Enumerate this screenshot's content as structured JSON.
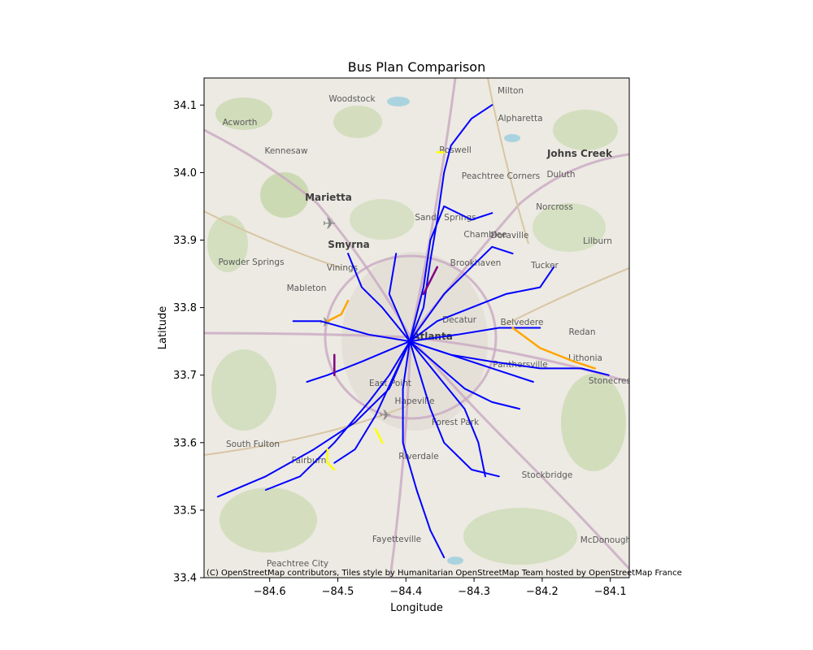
{
  "figure": {
    "title": "Bus Plan Comparison",
    "xlabel": "Longitude",
    "ylabel": "Latitude",
    "attribution": "(C) OpenStreetMap contributors, Tiles style by Humanitarian OpenStreetMap Team hosted by OpenStreetMap France"
  },
  "map": {
    "x_ticks": [
      "−84.6",
      "−84.5",
      "−84.4",
      "−84.3",
      "−84.2",
      "−84.1"
    ],
    "y_ticks": [
      "33.4",
      "33.5",
      "33.6",
      "33.7",
      "33.8",
      "33.9",
      "34.0",
      "34.1"
    ],
    "places": [
      "Woodstock",
      "Milton",
      "Alpharetta",
      "Acworth",
      "Kennesaw",
      "Roswell",
      "Johns Creek",
      "Duluth",
      "Peachtree Corners",
      "Marietta",
      "Norcross",
      "Sandy Springs",
      "Smyrna",
      "Lilburn",
      "Powder Springs",
      "Vinings",
      "Brookhaven",
      "Tucker",
      "Mableton",
      "Decatur",
      "Belvedere",
      "Redan",
      "Atlanta",
      "Stonecrest",
      "Forest Park",
      "South Fulton",
      "Fairburn",
      "Riverdale",
      "Stockbridge",
      "Fayetteville",
      "McDonough",
      "Peachtree City",
      "Chamblee",
      "Doraville",
      "Lithonia",
      "Panthersville",
      "East Point",
      "Hapeville"
    ],
    "colors": {
      "bus_route": "#0000ff",
      "proposed_a": "#ffa500",
      "proposed_b": "#ffff00",
      "removed": "#800080"
    }
  },
  "chart_data": {
    "type": "map",
    "title": "Bus Plan Comparison",
    "xlabel": "Longitude",
    "ylabel": "Latitude",
    "xlim": [
      -84.69,
      -84.07
    ],
    "ylim": [
      33.4,
      34.14
    ],
    "series": [
      {
        "color": "#0000ff",
        "routes": [
          [
            [
              -84.67,
              33.52
            ],
            [
              -84.6,
              33.55
            ],
            [
              -84.53,
              33.59
            ],
            [
              -84.47,
              33.63
            ],
            [
              -84.42,
              33.68
            ],
            [
              -84.39,
              33.75
            ]
          ],
          [
            [
              -84.39,
              33.75
            ],
            [
              -84.37,
              33.8
            ],
            [
              -84.36,
              33.87
            ],
            [
              -84.35,
              33.93
            ],
            [
              -84.34,
              34.0
            ],
            [
              -84.33,
              34.04
            ],
            [
              -84.3,
              34.08
            ],
            [
              -84.27,
              34.1
            ]
          ],
          [
            [
              -84.39,
              33.75
            ],
            [
              -84.35,
              33.78
            ],
            [
              -84.3,
              33.8
            ],
            [
              -84.25,
              33.82
            ],
            [
              -84.2,
              33.83
            ],
            [
              -84.18,
              33.86
            ]
          ],
          [
            [
              -84.39,
              33.75
            ],
            [
              -84.33,
              33.73
            ],
            [
              -84.27,
              33.72
            ],
            [
              -84.2,
              33.71
            ],
            [
              -84.14,
              33.71
            ],
            [
              -84.1,
              33.7
            ]
          ],
          [
            [
              -84.39,
              33.75
            ],
            [
              -84.45,
              33.76
            ],
            [
              -84.52,
              33.78
            ],
            [
              -84.56,
              33.78
            ]
          ],
          [
            [
              -84.39,
              33.75
            ],
            [
              -84.4,
              33.68
            ],
            [
              -84.4,
              33.6
            ],
            [
              -84.38,
              33.53
            ],
            [
              -84.36,
              33.47
            ],
            [
              -84.34,
              33.43
            ]
          ],
          [
            [
              -84.39,
              33.75
            ],
            [
              -84.42,
              33.7
            ],
            [
              -84.45,
              33.66
            ],
            [
              -84.5,
              33.6
            ],
            [
              -84.55,
              33.55
            ],
            [
              -84.6,
              33.53
            ]
          ],
          [
            [
              -84.39,
              33.75
            ],
            [
              -84.35,
              33.7
            ],
            [
              -84.31,
              33.65
            ],
            [
              -84.29,
              33.6
            ],
            [
              -84.28,
              33.55
            ]
          ],
          [
            [
              -84.39,
              33.75
            ],
            [
              -84.43,
              33.8
            ],
            [
              -84.46,
              33.83
            ],
            [
              -84.48,
              33.88
            ]
          ],
          [
            [
              -84.39,
              33.75
            ],
            [
              -84.37,
              33.83
            ],
            [
              -84.36,
              33.9
            ],
            [
              -84.34,
              33.95
            ],
            [
              -84.3,
              33.93
            ],
            [
              -84.27,
              33.94
            ]
          ],
          [
            [
              -84.39,
              33.75
            ],
            [
              -84.34,
              33.82
            ],
            [
              -84.3,
              33.86
            ],
            [
              -84.27,
              33.89
            ],
            [
              -84.24,
              33.88
            ]
          ],
          [
            [
              -84.39,
              33.75
            ],
            [
              -84.32,
              33.76
            ],
            [
              -84.26,
              33.77
            ],
            [
              -84.2,
              33.77
            ]
          ],
          [
            [
              -84.39,
              33.75
            ],
            [
              -84.3,
              33.72
            ],
            [
              -84.24,
              33.7
            ],
            [
              -84.21,
              33.69
            ]
          ],
          [
            [
              -84.39,
              33.75
            ],
            [
              -84.46,
              33.72
            ],
            [
              -84.51,
              33.7
            ],
            [
              -84.54,
              33.69
            ]
          ],
          [
            [
              -84.39,
              33.75
            ],
            [
              -84.44,
              33.64
            ],
            [
              -84.47,
              33.59
            ],
            [
              -84.5,
              33.57
            ]
          ],
          [
            [
              -84.39,
              33.75
            ],
            [
              -84.36,
              33.65
            ],
            [
              -84.34,
              33.6
            ],
            [
              -84.3,
              33.56
            ],
            [
              -84.26,
              33.55
            ]
          ],
          [
            [
              -84.39,
              33.75
            ],
            [
              -84.31,
              33.68
            ],
            [
              -84.27,
              33.66
            ],
            [
              -84.23,
              33.65
            ]
          ],
          [
            [
              -84.39,
              33.75
            ],
            [
              -84.42,
              33.82
            ],
            [
              -84.41,
              33.88
            ]
          ]
        ]
      },
      {
        "color": "#ffa500",
        "routes": [
          [
            [
              -84.24,
              33.77
            ],
            [
              -84.2,
              33.74
            ],
            [
              -84.15,
              33.72
            ],
            [
              -84.12,
              33.71
            ]
          ],
          [
            [
              -84.51,
              33.78
            ],
            [
              -84.49,
              33.79
            ],
            [
              -84.48,
              33.81
            ]
          ]
        ]
      },
      {
        "color": "#ffff00",
        "routes": [
          [
            [
              -84.51,
              33.59
            ],
            [
              -84.51,
              33.57
            ],
            [
              -84.5,
              33.56
            ]
          ],
          [
            [
              -84.35,
              34.03
            ],
            [
              -84.34,
              34.03
            ]
          ],
          [
            [
              -84.44,
              33.62
            ],
            [
              -84.43,
              33.6
            ]
          ]
        ]
      },
      {
        "color": "#800080",
        "routes": [
          [
            [
              -84.37,
              33.82
            ],
            [
              -84.36,
              33.84
            ],
            [
              -84.35,
              33.86
            ]
          ],
          [
            [
              -84.5,
              33.7
            ],
            [
              -84.5,
              33.73
            ]
          ]
        ]
      }
    ]
  }
}
